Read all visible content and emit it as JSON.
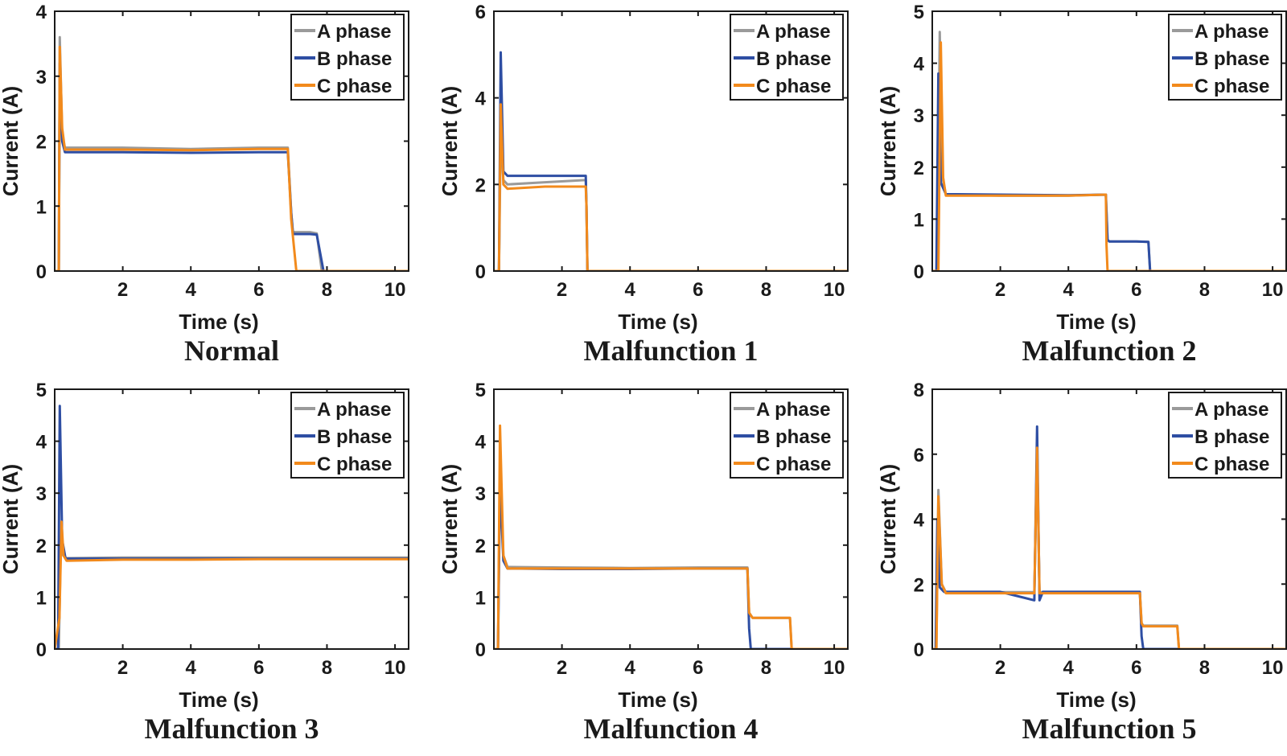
{
  "colors": {
    "a": "#9a9a9a",
    "b": "#2e4ea3",
    "c": "#f28a1c"
  },
  "chart_data": [
    {
      "type": "line",
      "title": "Normal",
      "xlabel": "Time (s)",
      "ylabel": "Current (A)",
      "xlim": [
        0,
        10.4
      ],
      "ylim": [
        0,
        4
      ],
      "xticks": [
        "2",
        "4",
        "6",
        "8",
        "10"
      ],
      "yticks": [
        "0",
        "1",
        "2",
        "3",
        "4"
      ],
      "xtick_values": [
        2,
        4,
        6,
        8,
        10
      ],
      "ytick_values": [
        0,
        1,
        2,
        3,
        4
      ],
      "legend": "top-right",
      "series": [
        {
          "name": "A phase",
          "color_key": "a",
          "x": [
            0,
            0.12,
            0.15,
            0.22,
            0.3,
            2,
            4,
            6,
            6.85,
            6.95,
            7.0,
            7.5,
            7.7,
            7.85,
            10.4
          ],
          "y": [
            0,
            0,
            3.6,
            2.1,
            1.9,
            1.9,
            1.88,
            1.9,
            1.9,
            0.9,
            0.6,
            0.6,
            0.58,
            0,
            0
          ]
        },
        {
          "name": "B phase",
          "color_key": "b",
          "x": [
            0,
            0.12,
            0.15,
            0.22,
            0.3,
            2,
            4,
            6,
            6.85,
            6.95,
            7.0,
            7.5,
            7.7,
            7.9,
            10.4
          ],
          "y": [
            0,
            0,
            3.2,
            2.0,
            1.83,
            1.83,
            1.82,
            1.83,
            1.83,
            0.9,
            0.57,
            0.57,
            0.56,
            0,
            0
          ]
        },
        {
          "name": "C phase",
          "color_key": "c",
          "x": [
            0,
            0.12,
            0.15,
            0.22,
            0.3,
            2,
            4,
            6,
            6.85,
            6.95,
            7.1,
            10.4
          ],
          "y": [
            0,
            0,
            3.45,
            2.2,
            1.87,
            1.87,
            1.86,
            1.88,
            1.88,
            0.8,
            0,
            0
          ]
        }
      ]
    },
    {
      "type": "line",
      "title": "Malfunction 1",
      "xlabel": "Time (s)",
      "ylabel": "Current (A)",
      "xlim": [
        0,
        10.4
      ],
      "ylim": [
        0,
        6
      ],
      "xticks": [
        "2",
        "4",
        "6",
        "8",
        "10"
      ],
      "yticks": [
        "0",
        "2",
        "4",
        "6"
      ],
      "xtick_values": [
        2,
        4,
        6,
        8,
        10
      ],
      "ytick_values": [
        0,
        2,
        4,
        6
      ],
      "legend": "top-right",
      "series": [
        {
          "name": "A phase",
          "color_key": "a",
          "x": [
            0,
            0.15,
            0.2,
            0.28,
            0.4,
            1.5,
            2.7,
            2.72,
            2.75,
            10.4
          ],
          "y": [
            0,
            0,
            3.2,
            2.1,
            2.0,
            2.05,
            2.1,
            1.5,
            0,
            0
          ]
        },
        {
          "name": "B phase",
          "color_key": "b",
          "x": [
            0,
            0.15,
            0.2,
            0.28,
            0.4,
            1.5,
            2.7,
            2.72,
            2.75,
            10.4
          ],
          "y": [
            0,
            0,
            5.05,
            2.3,
            2.2,
            2.2,
            2.2,
            1.5,
            0,
            0
          ]
        },
        {
          "name": "C phase",
          "color_key": "c",
          "x": [
            0,
            0.15,
            0.2,
            0.28,
            0.4,
            1.5,
            2.7,
            2.72,
            2.75,
            10.4
          ],
          "y": [
            0,
            0,
            3.85,
            2.0,
            1.9,
            1.95,
            1.95,
            1.5,
            0,
            0
          ]
        }
      ]
    },
    {
      "type": "line",
      "title": "Malfunction 2",
      "xlabel": "Time (s)",
      "ylabel": "Current (A)",
      "xlim": [
        0,
        10.4
      ],
      "ylim": [
        0,
        5
      ],
      "xticks": [
        "2",
        "4",
        "6",
        "8",
        "10"
      ],
      "yticks": [
        "0",
        "1",
        "2",
        "3",
        "4",
        "5"
      ],
      "xtick_values": [
        2,
        4,
        6,
        8,
        10
      ],
      "ytick_values": [
        0,
        1,
        2,
        3,
        4,
        5
      ],
      "legend": "top-right",
      "series": [
        {
          "name": "A phase",
          "color_key": "a",
          "x": [
            0,
            0.15,
            0.22,
            0.3,
            0.4,
            2,
            4,
            5.1,
            5.15,
            5.2,
            6.0,
            6.35,
            6.4,
            10.4
          ],
          "y": [
            0,
            0,
            4.6,
            1.8,
            1.47,
            1.45,
            1.45,
            1.47,
            0.6,
            0.57,
            0.57,
            0.56,
            0,
            0
          ]
        },
        {
          "name": "B phase",
          "color_key": "b",
          "x": [
            0,
            0.12,
            0.18,
            0.25,
            0.4,
            2,
            4,
            5.1,
            5.15,
            5.2,
            6.0,
            6.35,
            6.4,
            10.4
          ],
          "y": [
            0,
            0,
            3.8,
            1.7,
            1.48,
            1.47,
            1.46,
            1.47,
            0.6,
            0.57,
            0.57,
            0.56,
            0,
            0
          ]
        },
        {
          "name": "C phase",
          "color_key": "c",
          "x": [
            0,
            0.18,
            0.25,
            0.32,
            0.4,
            2,
            4,
            5.1,
            5.12,
            5.15,
            10.4
          ],
          "y": [
            0,
            0,
            4.4,
            1.8,
            1.45,
            1.45,
            1.45,
            1.47,
            0.5,
            0,
            0
          ]
        }
      ]
    },
    {
      "type": "line",
      "title": "Malfunction 3",
      "xlabel": "Time (s)",
      "ylabel": "Current (A)",
      "xlim": [
        0,
        10.4
      ],
      "ylim": [
        0,
        5
      ],
      "xticks": [
        "2",
        "4",
        "6",
        "8",
        "10"
      ],
      "yticks": [
        "0",
        "1",
        "2",
        "3",
        "4",
        "5"
      ],
      "xtick_values": [
        2,
        4,
        6,
        8,
        10
      ],
      "ytick_values": [
        0,
        1,
        2,
        3,
        4,
        5
      ],
      "legend": "top-right",
      "series": [
        {
          "name": "A phase",
          "color_key": "a",
          "x": [
            0,
            0.12,
            0.18,
            0.25,
            0.35,
            2,
            4,
            6,
            8,
            10.4
          ],
          "y": [
            0,
            0,
            2.0,
            1.8,
            1.75,
            1.76,
            1.76,
            1.76,
            1.76,
            1.76
          ]
        },
        {
          "name": "B phase",
          "color_key": "b",
          "x": [
            0,
            0.1,
            0.15,
            0.22,
            0.32,
            2,
            4,
            6,
            8,
            10.4
          ],
          "y": [
            0,
            0,
            4.68,
            2.1,
            1.74,
            1.74,
            1.74,
            1.74,
            1.74,
            1.74
          ]
        },
        {
          "name": "C phase",
          "color_key": "c",
          "x": [
            0,
            0.14,
            0.2,
            0.26,
            0.35,
            2,
            4,
            6,
            8,
            10.4
          ],
          "y": [
            0,
            0.6,
            2.45,
            1.8,
            1.7,
            1.72,
            1.72,
            1.73,
            1.73,
            1.73
          ]
        }
      ]
    },
    {
      "type": "line",
      "title": "Malfunction 4",
      "xlabel": "Time (s)",
      "ylabel": "Current (A)",
      "xlim": [
        0,
        10.4
      ],
      "ylim": [
        0,
        5
      ],
      "xticks": [
        "2",
        "4",
        "6",
        "8",
        "10"
      ],
      "yticks": [
        "0",
        "1",
        "2",
        "3",
        "4",
        "5"
      ],
      "xtick_values": [
        2,
        4,
        6,
        8,
        10
      ],
      "ytick_values": [
        0,
        1,
        2,
        3,
        4,
        5
      ],
      "legend": "top-right",
      "series": [
        {
          "name": "A phase",
          "color_key": "a",
          "x": [
            0,
            0.12,
            0.18,
            0.28,
            0.4,
            2,
            4,
            6,
            7.45,
            7.5,
            7.6,
            8.7,
            8.75,
            10.4
          ],
          "y": [
            0,
            0,
            3.4,
            1.8,
            1.58,
            1.57,
            1.56,
            1.57,
            1.57,
            0.7,
            0.6,
            0.6,
            0,
            0
          ]
        },
        {
          "name": "B phase",
          "color_key": "b",
          "x": [
            0,
            0.12,
            0.18,
            0.28,
            0.4,
            2,
            4,
            6,
            7.45,
            7.5,
            7.55,
            10.4
          ],
          "y": [
            0,
            0,
            3.2,
            1.7,
            1.55,
            1.54,
            1.54,
            1.55,
            1.55,
            0.4,
            0,
            0
          ]
        },
        {
          "name": "C phase",
          "color_key": "c",
          "x": [
            0,
            0.12,
            0.18,
            0.28,
            0.4,
            2,
            4,
            6,
            7.45,
            7.5,
            7.6,
            8.7,
            8.75,
            10.4
          ],
          "y": [
            0,
            0,
            4.3,
            1.8,
            1.55,
            1.55,
            1.55,
            1.55,
            1.55,
            0.7,
            0.6,
            0.6,
            0,
            0
          ]
        }
      ]
    },
    {
      "type": "line",
      "title": "Malfunction 5",
      "xlabel": "Time (s)",
      "ylabel": "Current (A)",
      "xlim": [
        0,
        10.4
      ],
      "ylim": [
        0,
        8
      ],
      "xticks": [
        "2",
        "4",
        "6",
        "8",
        "10"
      ],
      "yticks": [
        "0",
        "2",
        "4",
        "6",
        "8"
      ],
      "xtick_values": [
        2,
        4,
        6,
        8,
        10
      ],
      "ytick_values": [
        0,
        2,
        4,
        6,
        8
      ],
      "legend": "top-right",
      "series": [
        {
          "name": "A phase",
          "color_key": "a",
          "x": [
            0,
            0.12,
            0.18,
            0.28,
            0.4,
            2,
            3.0,
            3.08,
            3.15,
            3.25,
            4,
            5,
            6.1,
            6.15,
            6.2,
            7.2,
            7.25,
            10.4
          ],
          "y": [
            0,
            0,
            4.9,
            2.0,
            1.75,
            1.75,
            1.75,
            6.0,
            1.75,
            1.75,
            1.75,
            1.75,
            1.75,
            0.8,
            0.72,
            0.72,
            0,
            0
          ]
        },
        {
          "name": "B phase",
          "color_key": "b",
          "x": [
            0,
            0.1,
            0.15,
            0.22,
            0.35,
            2,
            3.0,
            3.08,
            3.15,
            3.25,
            4,
            5,
            6.1,
            6.15,
            6.2,
            10.4
          ],
          "y": [
            0,
            0,
            4.0,
            1.9,
            1.76,
            1.76,
            1.5,
            6.85,
            1.5,
            1.76,
            1.76,
            1.76,
            1.76,
            0.4,
            0,
            0
          ]
        },
        {
          "name": "C phase",
          "color_key": "c",
          "x": [
            0,
            0.12,
            0.18,
            0.28,
            0.4,
            2,
            3.0,
            3.08,
            3.15,
            3.25,
            4,
            5,
            6.1,
            6.15,
            6.2,
            7.2,
            7.25,
            10.4
          ],
          "y": [
            0,
            0,
            4.7,
            2.0,
            1.72,
            1.72,
            1.72,
            6.2,
            1.72,
            1.72,
            1.72,
            1.72,
            1.72,
            0.8,
            0.7,
            0.7,
            0,
            0
          ]
        }
      ]
    }
  ]
}
